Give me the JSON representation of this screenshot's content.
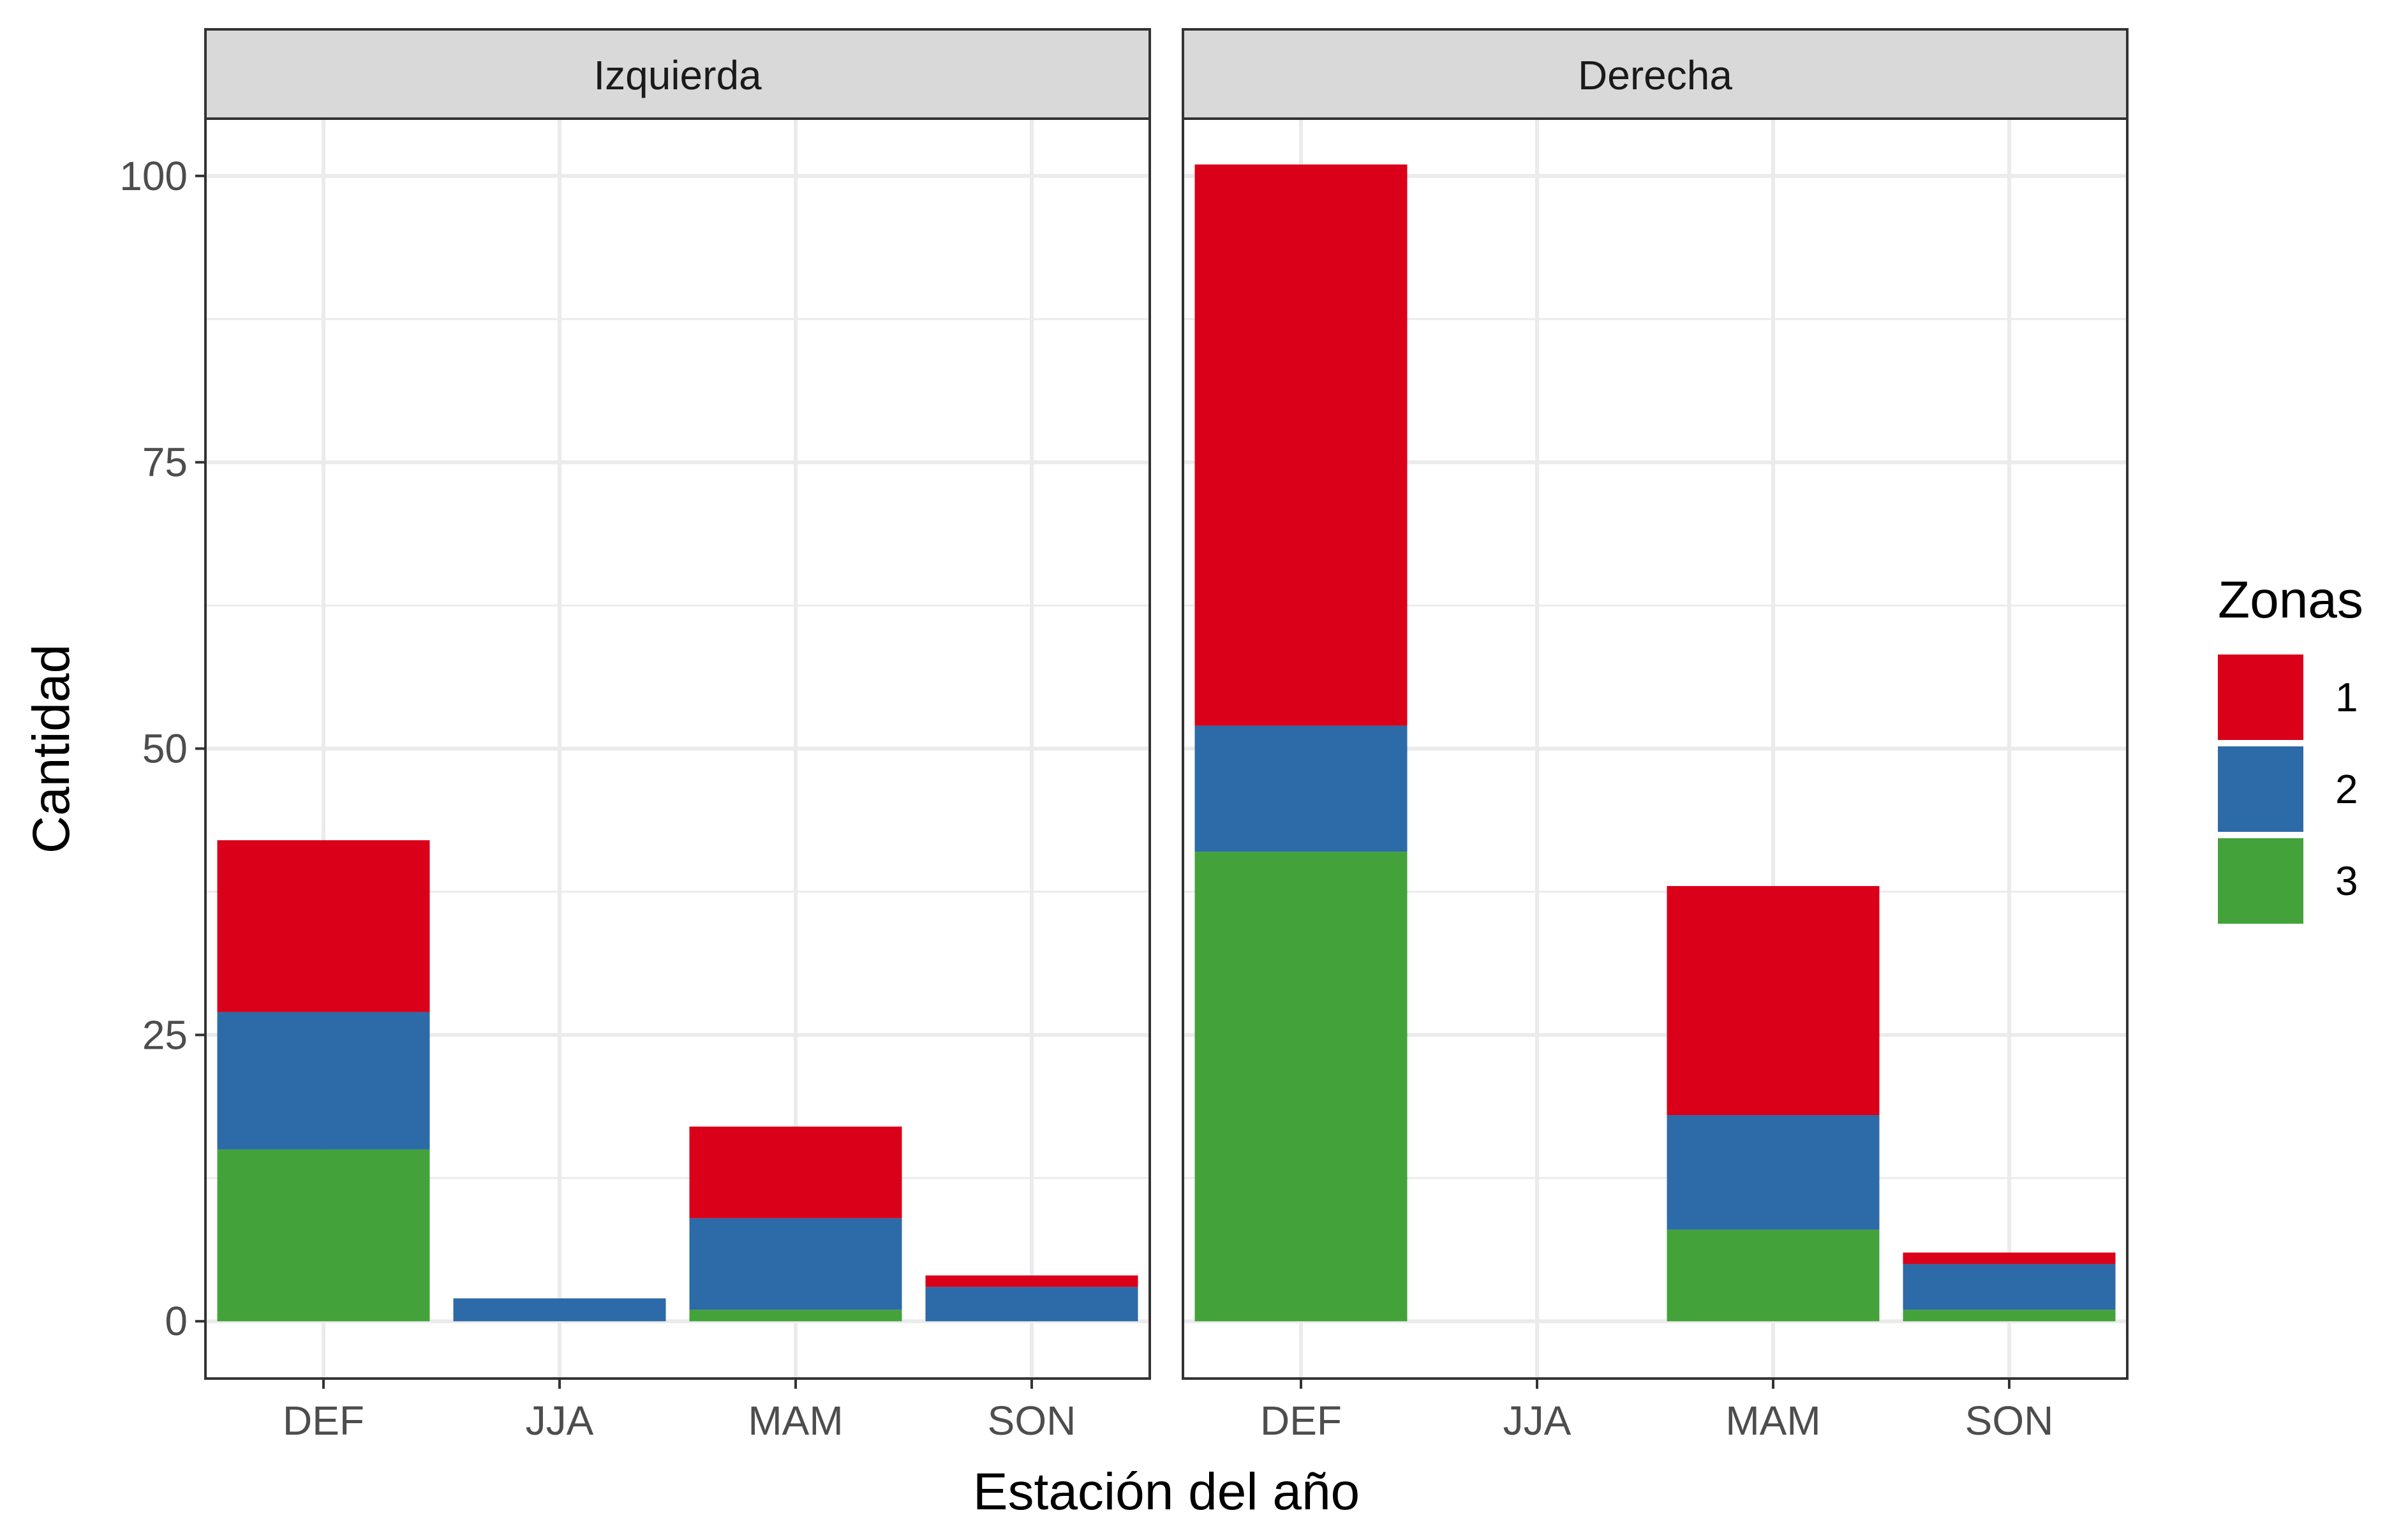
{
  "chart_data": {
    "type": "bar",
    "stacked": true,
    "xlabel": "Estación del año",
    "ylabel": "Cantidad",
    "ylim": [
      -5,
      105
    ],
    "yticks": [
      0,
      25,
      50,
      75,
      100
    ],
    "ytick_labels": [
      "0",
      "25",
      "50",
      "75",
      "100"
    ],
    "categories": [
      "DEF",
      "JJA",
      "MAM",
      "SON"
    ],
    "grid": true,
    "legend": {
      "title": "Zonas",
      "placement": "right",
      "entries": [
        {
          "label": "1",
          "color": "#da0019"
        },
        {
          "label": "2",
          "color": "#2d6aa8"
        },
        {
          "label": "3",
          "color": "#43a33a"
        }
      ]
    },
    "panels": [
      {
        "strip": "Izquierda",
        "series": [
          {
            "name": "3",
            "color": "#43a33a",
            "values": [
              15,
              0,
              1,
              0
            ]
          },
          {
            "name": "2",
            "color": "#2d6aa8",
            "values": [
              12,
              2,
              8,
              3
            ]
          },
          {
            "name": "1",
            "color": "#da0019",
            "values": [
              15,
              0,
              8,
              1
            ]
          }
        ]
      },
      {
        "strip": "Derecha",
        "series": [
          {
            "name": "3",
            "color": "#43a33a",
            "values": [
              41,
              0,
              8,
              1
            ]
          },
          {
            "name": "2",
            "color": "#2d6aa8",
            "values": [
              11,
              0,
              10,
              4
            ]
          },
          {
            "name": "1",
            "color": "#da0019",
            "values": [
              49,
              0,
              20,
              1
            ]
          }
        ]
      }
    ]
  }
}
